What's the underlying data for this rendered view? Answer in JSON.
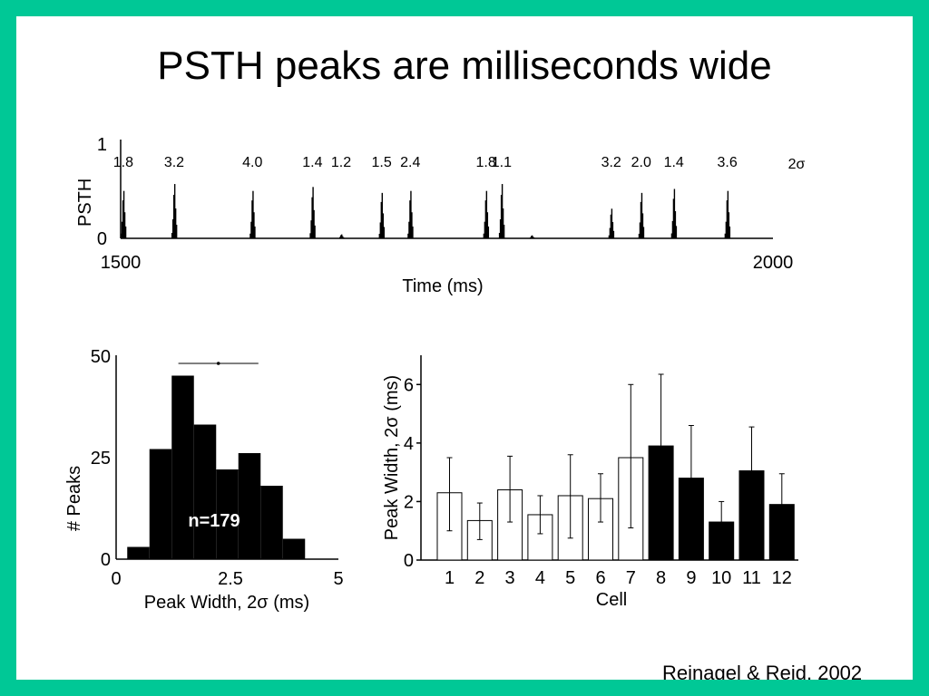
{
  "slide": {
    "title": "PSTH peaks are milliseconds wide",
    "citation": "Reinagel & Reid, 2002",
    "border_color": "#00c896"
  },
  "chart_data": [
    {
      "type": "bar",
      "ylabel": "PSTH",
      "xlabel": "Time (ms)",
      "xlim": [
        1500,
        2000
      ],
      "ylim": [
        0,
        1
      ],
      "x_ticks": [
        "1500",
        "2000"
      ],
      "y_ticks": [
        "0",
        "1"
      ],
      "width_label_suffix": "2σ",
      "peaks": [
        {
          "time": 1502,
          "height": 0.48,
          "width_label": "1.8"
        },
        {
          "time": 1541,
          "height": 0.55,
          "width_label": "3.2"
        },
        {
          "time": 1601,
          "height": 0.48,
          "width_label": "4.0"
        },
        {
          "time": 1647,
          "height": 0.52,
          "width_label": "1.4"
        },
        {
          "time": 1669,
          "height": 0.04,
          "width_label": "1.2"
        },
        {
          "time": 1700,
          "height": 0.46,
          "width_label": "1.5"
        },
        {
          "time": 1722,
          "height": 0.48,
          "width_label": "2.4"
        },
        {
          "time": 1780,
          "height": 0.48,
          "width_label": "1.8"
        },
        {
          "time": 1792,
          "height": 0.55,
          "width_label": "1.1"
        },
        {
          "time": 1815,
          "height": 0.03,
          "width_label": ""
        },
        {
          "time": 1876,
          "height": 0.3,
          "width_label": "3.2"
        },
        {
          "time": 1899,
          "height": 0.46,
          "width_label": "2.0"
        },
        {
          "time": 1924,
          "height": 0.5,
          "width_label": "1.4"
        },
        {
          "time": 1965,
          "height": 0.48,
          "width_label": "3.6"
        }
      ]
    },
    {
      "type": "bar",
      "xlabel": "Peak Width, 2σ (ms)",
      "ylabel": "# Peaks",
      "xlim": [
        0,
        5
      ],
      "ylim": [
        0,
        50
      ],
      "x_ticks": [
        "0",
        "2.5",
        "5"
      ],
      "y_ticks": [
        "0",
        "25",
        "50"
      ],
      "bins": [
        {
          "start": 0.25,
          "end": 0.75,
          "count": 3
        },
        {
          "start": 0.75,
          "end": 1.25,
          "count": 27
        },
        {
          "start": 1.25,
          "end": 1.75,
          "count": 45
        },
        {
          "start": 1.75,
          "end": 2.25,
          "count": 33
        },
        {
          "start": 2.25,
          "end": 2.75,
          "count": 22
        },
        {
          "start": 2.75,
          "end": 3.25,
          "count": 26
        },
        {
          "start": 3.25,
          "end": 3.75,
          "count": 18
        },
        {
          "start": 3.75,
          "end": 4.25,
          "count": 5
        }
      ],
      "annotation": "n=179",
      "summary": {
        "mean": 2.3,
        "low": 1.4,
        "high": 3.2,
        "y": 48
      }
    },
    {
      "type": "bar",
      "xlabel": "Cell",
      "ylabel": "Peak Width, 2σ (ms)",
      "ylim": [
        0,
        7
      ],
      "y_ticks": [
        "0",
        "2",
        "4",
        "6"
      ],
      "categories": [
        "1",
        "2",
        "3",
        "4",
        "5",
        "6",
        "7",
        "8",
        "9",
        "10",
        "11",
        "12"
      ],
      "values": [
        2.3,
        1.35,
        2.4,
        1.55,
        2.2,
        2.1,
        3.5,
        3.9,
        2.8,
        1.3,
        3.05,
        1.9
      ],
      "error_low": [
        1.0,
        0.7,
        1.3,
        0.9,
        0.75,
        1.3,
        1.1,
        1.5,
        1.05,
        0.6,
        1.55,
        0.9
      ],
      "error_high": [
        3.5,
        1.95,
        3.55,
        2.2,
        3.6,
        2.95,
        6.0,
        6.35,
        4.6,
        2.0,
        4.55,
        2.95
      ],
      "fill": [
        "white",
        "white",
        "white",
        "white",
        "white",
        "white",
        "white",
        "black",
        "black",
        "black",
        "black",
        "black"
      ]
    }
  ]
}
